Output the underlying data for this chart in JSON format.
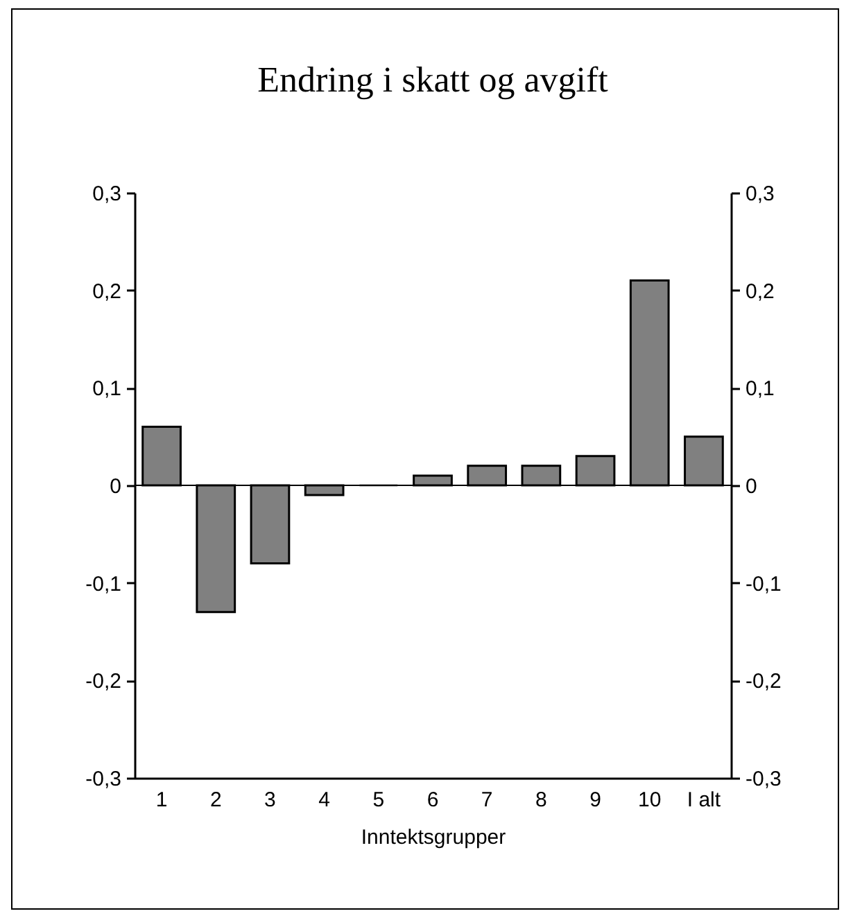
{
  "chart_data": {
    "type": "bar",
    "title": "Endring i skatt og avgift",
    "xlabel": "Inntektsgrupper",
    "categories": [
      "1",
      "2",
      "3",
      "4",
      "5",
      "6",
      "7",
      "8",
      "9",
      "10",
      "I alt"
    ],
    "values": [
      0.06,
      -0.13,
      -0.08,
      -0.01,
      0,
      0.01,
      0.02,
      0.02,
      0.03,
      0.21,
      0.05
    ],
    "color": "#808080",
    "ylim": [
      -0.3,
      0.3
    ],
    "yticks": [
      {
        "value": -0.3,
        "label": "-0,3"
      },
      {
        "value": -0.2,
        "label": "-0,2"
      },
      {
        "value": -0.1,
        "label": "-0,1"
      },
      {
        "value": 0,
        "label": "0"
      },
      {
        "value": 0.1,
        "label": "0,1"
      },
      {
        "value": 0.2,
        "label": "0,2"
      },
      {
        "value": 0.3,
        "label": "0,3"
      }
    ],
    "y2lim": [
      -0.3,
      0.3
    ],
    "y2ticks": [
      {
        "value": -0.3,
        "label": "-0,3"
      },
      {
        "value": -0.2,
        "label": "-0,2"
      },
      {
        "value": -0.1,
        "label": "-0,1"
      },
      {
        "value": 0,
        "label": "0"
      },
      {
        "value": 0.1,
        "label": "0,1"
      },
      {
        "value": 0.2,
        "label": "0,2"
      },
      {
        "value": 0.3,
        "label": "0,3"
      }
    ],
    "ref_lines": [
      {
        "axis": "y2",
        "value": 0
      }
    ]
  }
}
